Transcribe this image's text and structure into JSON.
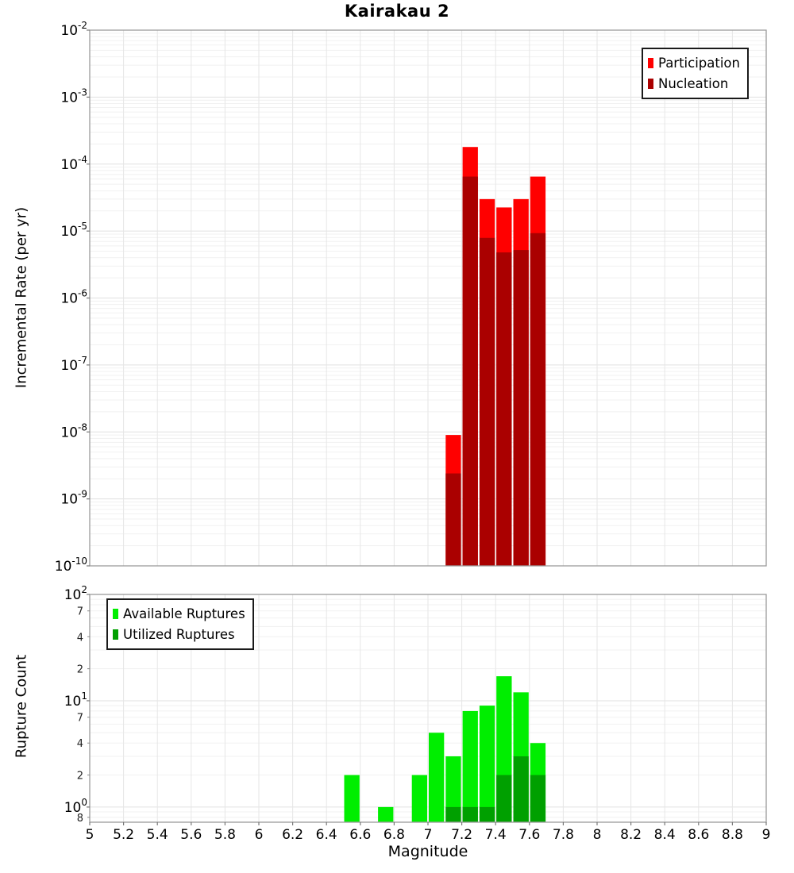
{
  "title": "Kairakau 2",
  "colors": {
    "participation": "#FF0000",
    "nucleation": "#AA0000",
    "available": "#00EE00",
    "utilized": "#00A000"
  },
  "chart_data": [
    {
      "id": "incremental-rate-chart",
      "type": "bar",
      "title": "Kairakau 2",
      "xlabel": "",
      "ylabel": "Incremental Rate (per yr)",
      "yscale": "log",
      "xlim": [
        5,
        9
      ],
      "ylim": [
        1e-10,
        0.01
      ],
      "bin_width": 0.1,
      "categories": [
        7.15,
        7.25,
        7.35,
        7.45,
        7.55,
        7.65
      ],
      "series": [
        {
          "name": "Participation",
          "color": "#FF0000",
          "values": [
            9e-09,
            0.00018,
            3e-05,
            2.25e-05,
            3e-05,
            6.5e-05
          ]
        },
        {
          "name": "Nucleation",
          "color": "#AA0000",
          "values": [
            2.4e-09,
            6.5e-05,
            7.9e-06,
            4.8e-06,
            5.2e-06,
            9.3e-06
          ]
        }
      ],
      "y_ticks": {
        "major_exponents": [
          -2,
          -3,
          -4,
          -5,
          -6,
          -7,
          -8,
          -9,
          -10
        ],
        "minor_labeled": []
      },
      "legend_position": "top-right",
      "grid": true
    },
    {
      "id": "rupture-count-chart",
      "type": "bar",
      "title": "",
      "xlabel": "Magnitude",
      "ylabel": "Rupture Count",
      "yscale": "log",
      "xlim": [
        5,
        9
      ],
      "ylim": [
        0.72,
        100
      ],
      "bin_width": 0.1,
      "categories": [
        6.55,
        6.75,
        6.95,
        7.05,
        7.15,
        7.25,
        7.35,
        7.45,
        7.55,
        7.65
      ],
      "series": [
        {
          "name": "Available Ruptures",
          "color": "#00EE00",
          "values": [
            2,
            1,
            2,
            5,
            3,
            8,
            9,
            17,
            12,
            4
          ]
        },
        {
          "name": "Utilized Ruptures",
          "color": "#00A000",
          "values": [
            0,
            0,
            0,
            0,
            1,
            1,
            1,
            2,
            3,
            2
          ]
        }
      ],
      "y_ticks": {
        "major_exponents": [
          2,
          1,
          0
        ],
        "minor_labeled": [
          {
            "value": 70,
            "label": "7"
          },
          {
            "value": 40,
            "label": "4"
          },
          {
            "value": 20,
            "label": "2"
          },
          {
            "value": 7,
            "label": "7"
          },
          {
            "value": 4,
            "label": "4"
          },
          {
            "value": 2,
            "label": "2"
          },
          {
            "value": 0.8,
            "label": "8"
          }
        ]
      },
      "x_tick_values": [
        5,
        5.2,
        5.4,
        5.6,
        5.8,
        6,
        6.2,
        6.4,
        6.6,
        6.8,
        7,
        7.2,
        7.4,
        7.6,
        7.8,
        8,
        8.2,
        8.4,
        8.6,
        8.8,
        9
      ],
      "x_tick_labels": [
        "5",
        "5.2",
        "5.4",
        "5.6",
        "5.8",
        "6",
        "6.2",
        "6.4",
        "6.6",
        "6.8",
        "7",
        "7.2",
        "7.4",
        "7.6",
        "7.8",
        "8",
        "8.2",
        "8.4",
        "8.6",
        "8.8",
        "9"
      ],
      "legend_position": "top-left",
      "grid": true
    }
  ]
}
